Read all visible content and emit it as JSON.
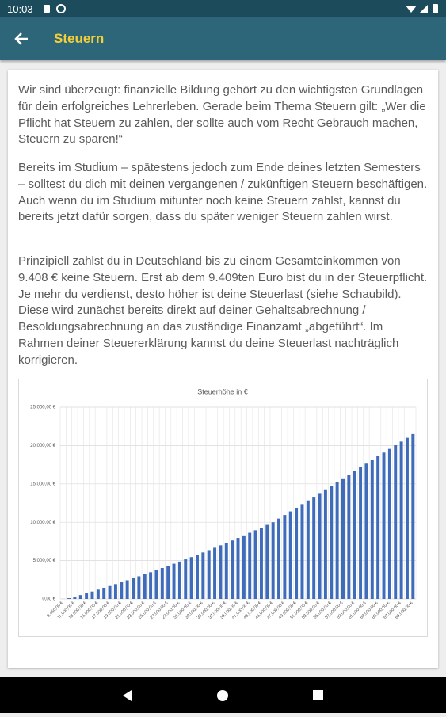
{
  "status_bar": {
    "time": "10:03"
  },
  "app_bar": {
    "title": "Steuern"
  },
  "paragraphs": [
    "Wir sind überzeugt: finanzielle Bildung gehört zu den wichtigsten Grundlagen für dein erfolgreiches Lehrerleben. Gerade beim Thema Steuern gilt: „Wer die Pflicht hat Steuern zu zahlen, der sollte auch vom Recht Gebrauch machen, Steuern zu sparen!“",
    "Bereits im Studium – spätestens jedoch zum Ende deines letzten Semesters – solltest du dich mit deinen vergangenen / zukünftigen Steuern beschäftigen. Auch wenn du im Studium mitunter noch keine Steuern zahlst, kannst du bereits jetzt dafür sorgen, dass du später weniger Steuern zahlen wirst.",
    "Prinzipiell zahlst du in Deutschland bis zu einem Gesamteinkommen von 9.408 € keine Steuern. Erst ab dem 9.409ten Euro bist du in der Steuerpflicht. Je mehr du verdienst, desto höher ist deine Steuerlast (siehe Schaubild). Diese wird zunächst bereits direkt auf deiner Gehaltsabrechnung / Besoldungsabrechnung an das zuständige Finanzamt „abgeführt“. Im Rahmen deiner Steuererklärung kannst du deine Steuerlast nachträglich korrigieren."
  ],
  "chart_data": {
    "type": "bar",
    "title": "Steuerhöhe in €",
    "color": "#3f6cba",
    "grid": true,
    "categories": [
      "9.450,00 €",
      null,
      "11.000,00 €",
      null,
      "13.000,00 €",
      null,
      "15.000,00 €",
      null,
      "17.000,00 €",
      null,
      "19.000,00 €",
      null,
      "21.000,00 €",
      null,
      "23.000,00 €",
      null,
      "25.000,00 €",
      null,
      "27.000,00 €",
      null,
      "29.000,00 €",
      null,
      "31.000,00 €",
      null,
      "33.000,00 €",
      null,
      "35.000,00 €",
      null,
      "37.000,00 €",
      null,
      "39.000,00 €",
      null,
      "41.000,00 €",
      null,
      "43.000,00 €",
      null,
      "45.000,00 €",
      null,
      "47.000,00 €",
      null,
      "49.000,00 €",
      null,
      "51.000,00 €",
      null,
      "53.000,00 €",
      null,
      "55.000,00 €",
      null,
      "57.000,00 €",
      null,
      "59.000,00 €",
      null,
      "61.000,00 €",
      null,
      "63.000,00 €",
      null,
      "65.000,00 €",
      null,
      "67.000,00 €",
      null,
      "69.000,00 €"
    ],
    "values": [
      5,
      100,
      290,
      500,
      720,
      960,
      1210,
      1450,
      1680,
      1930,
      2180,
      2430,
      2690,
      2950,
      3210,
      3480,
      3750,
      4030,
      4310,
      4590,
      4870,
      5160,
      5450,
      5760,
      6060,
      6360,
      6670,
      6990,
      7300,
      7620,
      7950,
      8280,
      8620,
      8950,
      9300,
      9650,
      10000,
      10470,
      10940,
      11410,
      11880,
      12360,
      12840,
      13320,
      13800,
      14280,
      14760,
      15240,
      15720,
      16200,
      16680,
      17160,
      17640,
      18120,
      18600,
      19080,
      19560,
      20040,
      20520,
      21010,
      21500
    ],
    "ylim": [
      0,
      25000
    ],
    "yticks": [
      {
        "value": 0,
        "label": "0,00 €"
      },
      {
        "value": 5000,
        "label": "5.000,00 €"
      },
      {
        "value": 10000,
        "label": "10.000,00 €"
      },
      {
        "value": 15000,
        "label": "15.000,00 €"
      },
      {
        "value": 20000,
        "label": "20.000,00 €"
      },
      {
        "value": 25000,
        "label": "25.000,00 €"
      }
    ]
  }
}
